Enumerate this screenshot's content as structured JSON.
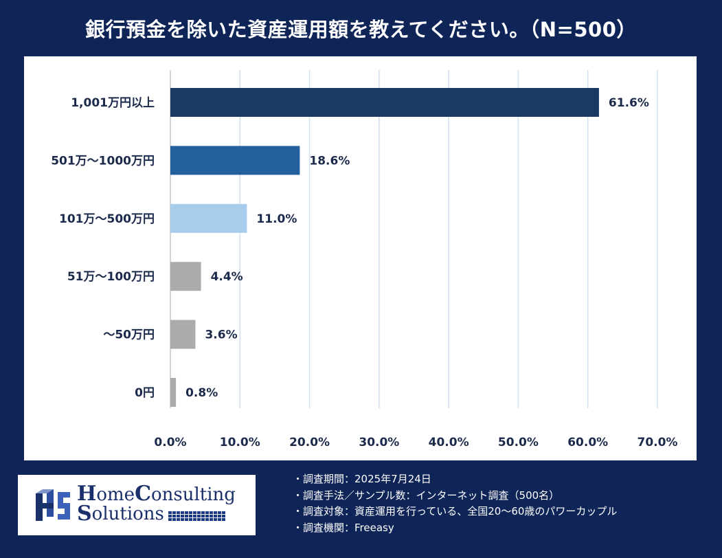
{
  "title": "銀行預金を除いた資産運用額を教えてください。（N=500）",
  "chart_data": {
    "type": "bar",
    "orientation": "horizontal",
    "categories": [
      "1,001万円以上",
      "501万～1000万円",
      "101万～500万円",
      "51万～100万円",
      "～50万円",
      "0円"
    ],
    "values": [
      61.6,
      18.6,
      11.0,
      4.4,
      3.6,
      0.8
    ],
    "value_labels": [
      "61.6%",
      "18.6%",
      "11.0%",
      "4.4%",
      "3.6%",
      "0.8%"
    ],
    "bar_colors": [
      "#1b3a63",
      "#23609e",
      "#a7ccec",
      "#ababab",
      "#ababab",
      "#ababab"
    ],
    "xlim": [
      0,
      70
    ],
    "x_ticks": [
      "0.0%",
      "10.0%",
      "20.0%",
      "30.0%",
      "40.0%",
      "50.0%",
      "60.0%",
      "70.0%"
    ],
    "grid": "vertical",
    "xlabel": "",
    "ylabel": ""
  },
  "logo": {
    "line1_big": "H",
    "line1_rest": "ome",
    "line1_big2": "C",
    "line1_rest2": "onsulting",
    "line2_big": "S",
    "line2_rest": "olutions"
  },
  "notes": [
    "・調査期間：2025年7月24日",
    "・調査手法／サンプル数：インターネット調査（500名）",
    "・調査対象：資産運用を行っている、全国20～60歳のパワーカップル",
    "・調査機関：Freeasy"
  ],
  "colors": {
    "background": "#0f2558",
    "panel": "#ffffff",
    "text": "#1b2a4a",
    "grid": "#cfe0f2"
  }
}
